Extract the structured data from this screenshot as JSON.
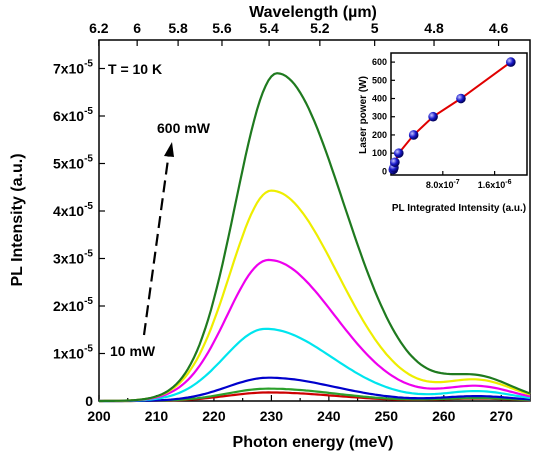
{
  "chart_data": [
    {
      "type": "line",
      "title": "",
      "xlabel": "Photon energy (meV)",
      "ylabel": "PL Intensity (a.u.)",
      "x2label": "Wavelength (µm)",
      "xlim": [
        200,
        275
      ],
      "ylim": [
        0,
        7.6e-05
      ],
      "x_ticks": [
        "200",
        "210",
        "220",
        "230",
        "240",
        "250",
        "260",
        "270"
      ],
      "y_ticks": [
        {
          "value": 0,
          "mant": "0",
          "exp": ""
        },
        {
          "value": 1e-05,
          "mant": "1x10",
          "exp": "-5"
        },
        {
          "value": 2e-05,
          "mant": "2x10",
          "exp": "-5"
        },
        {
          "value": 3e-05,
          "mant": "3x10",
          "exp": "-5"
        },
        {
          "value": 4e-05,
          "mant": "4x10",
          "exp": "-5"
        },
        {
          "value": 5e-05,
          "mant": "5x10",
          "exp": "-5"
        },
        {
          "value": 6e-05,
          "mant": "6x10",
          "exp": "-5"
        },
        {
          "value": 7e-05,
          "mant": "7x10",
          "exp": "-5"
        }
      ],
      "x2_ticks": [
        "6.2",
        "6",
        "5.8",
        "5.6",
        "5.4",
        "5.2",
        "5",
        "4.8",
        "4.6"
      ],
      "temperature_label": "T = 10 K",
      "low_power_label": "10 mW",
      "high_power_label": "600 mW",
      "high_power_color": "#1f7a1f",
      "series": [
        {
          "color": "#cc0000",
          "peak_x": 229.5,
          "peak": 1.8e-06,
          "tail": 5e-07
        },
        {
          "color": "#2ca02c",
          "peak_x": 229.5,
          "peak": 2.6e-06,
          "tail": 6e-07
        },
        {
          "color": "#0000cc",
          "peak_x": 229.5,
          "peak": 4.9e-06,
          "tail": 1e-06
        },
        {
          "color": "#00e5ee",
          "peak_x": 229.0,
          "peak": 1.52e-05,
          "tail": 2e-06
        },
        {
          "color": "#ee00ee",
          "peak_x": 229.5,
          "peak": 2.97e-05,
          "tail": 3e-06
        },
        {
          "color": "#eeee00",
          "peak_x": 230.0,
          "peak": 4.43e-05,
          "tail": 4.2e-06
        },
        {
          "color": "#1f7a1f",
          "peak_x": 231.0,
          "peak": 6.9e-05,
          "tail": 4.8e-06
        }
      ]
    },
    {
      "type": "scatter",
      "title": "",
      "xlabel": "PL Integrated Intensity (a.u.)",
      "ylabel": "Laser power (W)",
      "xlim": [
        0,
        2.1e-06
      ],
      "ylim": [
        -20,
        650
      ],
      "x_ticks": [
        {
          "value": 8e-07,
          "label": "8.0x10-7",
          "mant": "8.0x10",
          "exp": "-7"
        },
        {
          "value": 1.6e-06,
          "label": "1.6x10-6",
          "mant": "1.6x10",
          "exp": "-6"
        }
      ],
      "y_ticks": [
        "0",
        "100",
        "200",
        "300",
        "400",
        "500",
        "600"
      ],
      "points": [
        {
          "x": 3.5e-08,
          "y": 10
        },
        {
          "x": 4.5e-08,
          "y": 20
        },
        {
          "x": 6e-08,
          "y": 50
        },
        {
          "x": 1.2e-07,
          "y": 100
        },
        {
          "x": 3.5e-07,
          "y": 200
        },
        {
          "x": 6.5e-07,
          "y": 300
        },
        {
          "x": 1.08e-06,
          "y": 400
        },
        {
          "x": 1.85e-06,
          "y": 600
        }
      ],
      "marker_color": "#1a1acc",
      "line_color": "#e00000"
    }
  ]
}
